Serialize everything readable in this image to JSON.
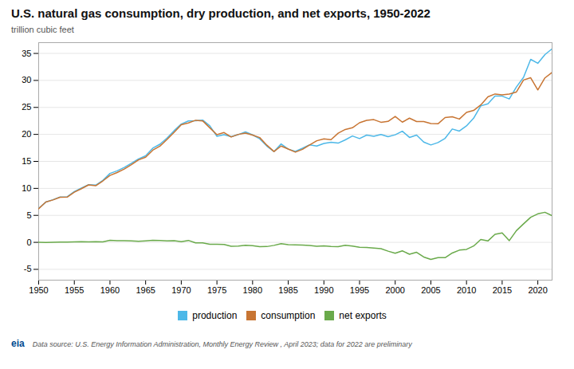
{
  "chart_data": {
    "type": "line",
    "title": "U.S. natural gas consumption, dry production, and net exports, 1950-2022",
    "ylabel": "trillion cubic feet",
    "source": "Data source: U.S. Energy Information Administration, Monthly Energy Review , April 2023; data for 2022 are preliminary",
    "annotations": [
      "eia"
    ],
    "x": [
      1950,
      1951,
      1952,
      1953,
      1954,
      1955,
      1956,
      1957,
      1958,
      1959,
      1960,
      1961,
      1962,
      1963,
      1964,
      1965,
      1966,
      1967,
      1968,
      1969,
      1970,
      1971,
      1972,
      1973,
      1974,
      1975,
      1976,
      1977,
      1978,
      1979,
      1980,
      1981,
      1982,
      1983,
      1984,
      1985,
      1986,
      1987,
      1988,
      1989,
      1990,
      1991,
      1992,
      1993,
      1994,
      1995,
      1996,
      1997,
      1998,
      1999,
      2000,
      2001,
      2002,
      2003,
      2004,
      2005,
      2006,
      2007,
      2008,
      2009,
      2010,
      2011,
      2012,
      2013,
      2014,
      2015,
      2016,
      2017,
      2018,
      2019,
      2020,
      2021,
      2022
    ],
    "series": [
      {
        "name": "production",
        "color": "#4db8e8",
        "values": [
          6.28,
          7.46,
          7.89,
          8.41,
          8.44,
          9.41,
          10.08,
          10.68,
          10.6,
          11.48,
          12.77,
          13.25,
          13.87,
          14.66,
          15.47,
          16.04,
          17.45,
          18.17,
          19.32,
          20.7,
          21.92,
          22.49,
          22.53,
          22.65,
          21.6,
          19.64,
          19.95,
          19.57,
          19.97,
          20.47,
          19.91,
          19.18,
          17.83,
          16.82,
          18.23,
          17.27,
          16.86,
          17.43,
          18.06,
          17.85,
          18.33,
          18.53,
          18.38,
          18.99,
          19.71,
          19.22,
          19.87,
          19.65,
          19.98,
          19.58,
          19.93,
          20.59,
          19.44,
          19.87,
          18.59,
          18.05,
          18.49,
          19.27,
          21.0,
          20.62,
          21.58,
          23.0,
          25.28,
          25.68,
          27.11,
          27.09,
          26.57,
          28.78,
          30.57,
          33.9,
          33.17,
          34.78,
          35.86
        ]
      },
      {
        "name": "consumption",
        "color": "#c87533",
        "values": [
          6.23,
          7.46,
          7.86,
          8.36,
          8.39,
          9.29,
          9.94,
          10.64,
          10.48,
          11.38,
          12.39,
          12.94,
          13.57,
          14.38,
          15.28,
          15.77,
          17.08,
          17.83,
          19.06,
          20.4,
          21.79,
          22.13,
          22.62,
          22.51,
          21.22,
          19.95,
          20.35,
          19.52,
          20.0,
          20.24,
          19.88,
          19.41,
          18.0,
          16.83,
          17.84,
          17.28,
          16.71,
          17.24,
          18.03,
          18.82,
          19.17,
          19.03,
          20.23,
          20.92,
          21.23,
          22.16,
          22.61,
          22.74,
          22.25,
          22.41,
          23.33,
          22.27,
          23.01,
          22.39,
          22.39,
          22.01,
          21.96,
          23.13,
          23.28,
          22.84,
          24.09,
          24.44,
          25.46,
          26.95,
          27.49,
          27.34,
          27.49,
          27.85,
          30.08,
          30.5,
          28.24,
          30.47,
          31.49
        ]
      },
      {
        "name": "net exports",
        "color": "#6aaa4b",
        "values": [
          0.03,
          -0.02,
          0.02,
          0.04,
          0.04,
          0.1,
          0.13,
          0.07,
          0.11,
          0.1,
          0.38,
          0.31,
          0.3,
          0.28,
          0.19,
          0.27,
          0.37,
          0.34,
          0.26,
          0.3,
          0.13,
          0.36,
          -0.09,
          -0.1,
          -0.36,
          -0.34,
          -0.39,
          -0.72,
          -0.68,
          -0.55,
          -0.6,
          -0.8,
          -0.78,
          -0.56,
          -0.25,
          -0.44,
          -0.48,
          -0.5,
          -0.59,
          -0.74,
          -0.65,
          -0.75,
          -0.8,
          -0.55,
          -0.68,
          -0.91,
          -0.95,
          -1.06,
          -1.18,
          -1.63,
          -2.02,
          -1.57,
          -2.2,
          -1.84,
          -2.71,
          -3.16,
          -2.83,
          -2.84,
          -1.97,
          -1.44,
          -1.3,
          -0.68,
          0.54,
          0.26,
          1.5,
          1.76,
          0.32,
          2.17,
          3.43,
          4.65,
          5.28,
          5.57,
          4.95
        ]
      }
    ],
    "xlim": [
      1950,
      2022
    ],
    "ylim": [
      -7,
      37
    ],
    "xticks": [
      1950,
      1955,
      1960,
      1965,
      1970,
      1975,
      1980,
      1985,
      1990,
      1995,
      2000,
      2005,
      2010,
      2015,
      2020
    ],
    "yticks": [
      -5,
      0,
      5,
      10,
      15,
      20,
      25,
      30,
      35
    ],
    "grid": "y",
    "legend": "bottom"
  }
}
